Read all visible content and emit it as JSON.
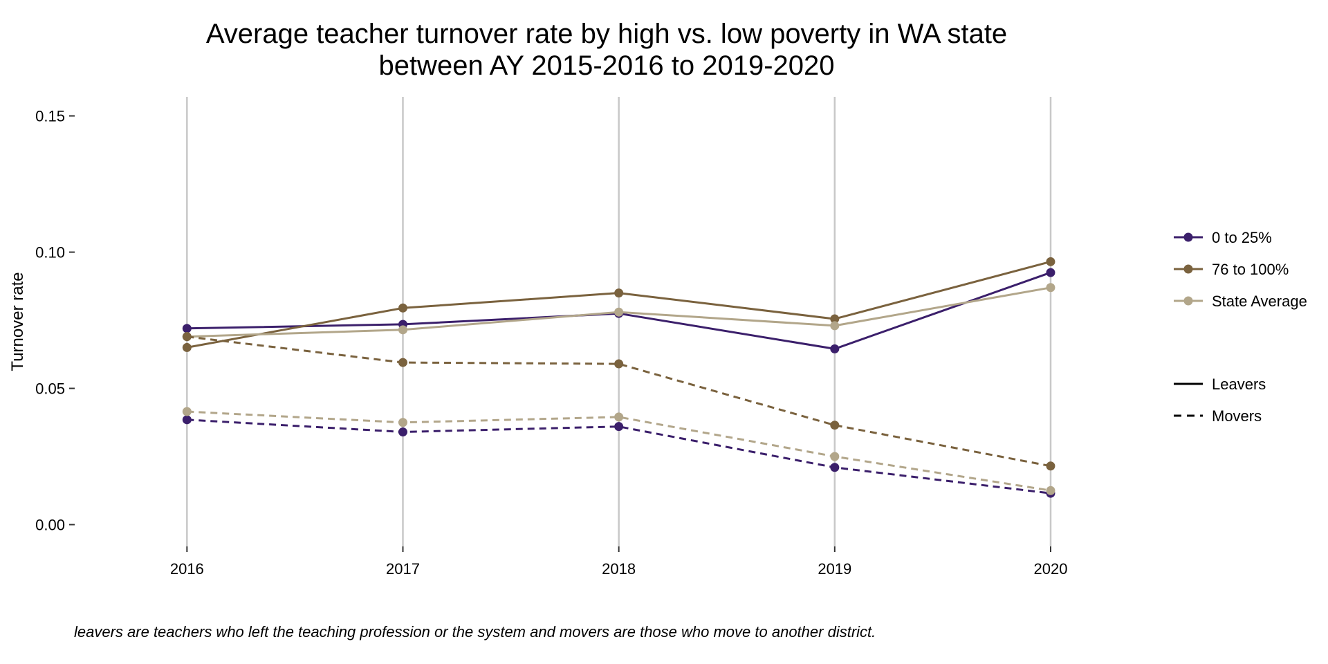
{
  "chart_data": {
    "type": "line",
    "title_lines": [
      "Average teacher turnover rate by high vs. low poverty in WA state",
      "between AY 2015-2016 to 2019-2020"
    ],
    "xlabel": "",
    "ylabel": "Turnover rate",
    "x": [
      2016,
      2017,
      2018,
      2019,
      2020
    ],
    "x_tick_labels": [
      "2016",
      "2017",
      "2018",
      "2019",
      "2020"
    ],
    "ylim": [
      -0.008,
      0.157
    ],
    "y_ticks": [
      0.0,
      0.05,
      0.1,
      0.15
    ],
    "y_tick_labels": [
      "0.00",
      "0.05",
      "0.10",
      "0.15"
    ],
    "grid": "vertical major only",
    "legend_position": "right",
    "series": [
      {
        "name": "0 to 25%",
        "type": "Leavers",
        "color": "#3b1f6b",
        "dash": "solid",
        "values": [
          0.072,
          0.0735,
          0.0775,
          0.0645,
          0.0925
        ]
      },
      {
        "name": "76 to 100%",
        "type": "Leavers",
        "color": "#7a623e",
        "dash": "solid",
        "values": [
          0.065,
          0.0795,
          0.085,
          0.0755,
          0.0965
        ]
      },
      {
        "name": "State Average",
        "type": "Leavers",
        "color": "#b2a68a",
        "dash": "solid",
        "values": [
          0.069,
          0.0715,
          0.078,
          0.073,
          0.087
        ]
      },
      {
        "name": "0 to 25%",
        "type": "Movers",
        "color": "#3b1f6b",
        "dash": "dashed",
        "values": [
          0.0385,
          0.034,
          0.036,
          0.021,
          0.0115
        ]
      },
      {
        "name": "76 to 100%",
        "type": "Movers",
        "color": "#7a623e",
        "dash": "dashed",
        "values": [
          0.069,
          0.0595,
          0.059,
          0.0365,
          0.0215
        ]
      },
      {
        "name": "State Average",
        "type": "Movers",
        "color": "#b2a68a",
        "dash": "dashed",
        "values": [
          0.0415,
          0.0375,
          0.0395,
          0.025,
          0.0125
        ]
      }
    ],
    "legend_color": [
      {
        "label": "0 to 25%",
        "color": "#3b1f6b"
      },
      {
        "label": "76 to 100%",
        "color": "#7a623e"
      },
      {
        "label": "State Average",
        "color": "#b2a68a"
      }
    ],
    "legend_linetype": [
      {
        "label": "Leavers",
        "dash": "solid"
      },
      {
        "label": "Movers",
        "dash": "dashed"
      }
    ],
    "caption": "leavers are teachers who left the teaching profession or the system and movers are those who move to another district."
  }
}
